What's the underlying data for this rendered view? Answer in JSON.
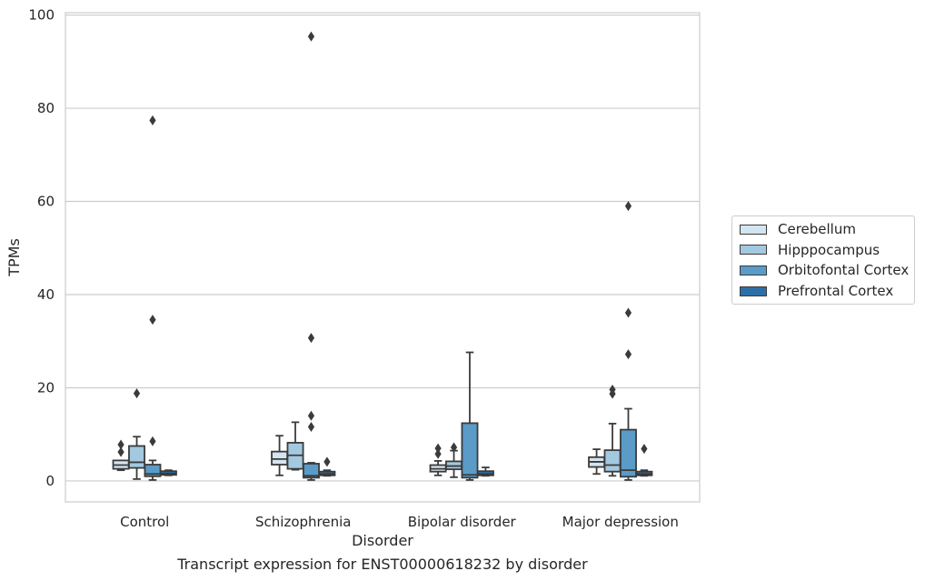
{
  "chart_data": {
    "type": "box",
    "title": "Transcript expression for ENST00000618232 by disorder",
    "xlabel": "Disorder",
    "ylabel": "TPMs",
    "ylim": [
      -4.5,
      100.5
    ],
    "yticks": [
      "0",
      "20",
      "40",
      "60",
      "80",
      "100"
    ],
    "grid": true,
    "legend_position": "right",
    "categories": [
      "Control",
      "Schizophrenia",
      "Bipolar disorder",
      "Major depression"
    ],
    "series": [
      {
        "name": "Cerebellum",
        "color": "#d4e4f1",
        "boxes": [
          {
            "whislo": 2.3,
            "q1": 2.6,
            "med": 3.4,
            "q3": 4.4,
            "whishi": 4.4,
            "fliers": [
              6.2,
              7.8
            ]
          },
          {
            "whislo": 1.2,
            "q1": 3.5,
            "med": 4.7,
            "q3": 6.3,
            "whishi": 9.7,
            "fliers": []
          },
          {
            "whislo": 1.2,
            "q1": 2.0,
            "med": 2.6,
            "q3": 3.4,
            "whishi": 4.3,
            "fliers": [
              5.8,
              7.0
            ]
          },
          {
            "whislo": 1.5,
            "q1": 3.0,
            "med": 4.1,
            "q3": 5.1,
            "whishi": 6.8,
            "fliers": []
          }
        ]
      },
      {
        "name": "Hipppocampus",
        "color": "#a3c9e0",
        "boxes": [
          {
            "whislo": 0.4,
            "q1": 2.8,
            "med": 4.0,
            "q3": 7.5,
            "whishi": 9.5,
            "fliers": [
              18.8
            ]
          },
          {
            "whislo": 2.4,
            "q1": 2.6,
            "med": 5.5,
            "q3": 8.2,
            "whishi": 12.6,
            "fliers": []
          },
          {
            "whislo": 0.8,
            "q1": 2.5,
            "med": 3.2,
            "q3": 4.2,
            "whishi": 6.5,
            "fliers": [
              7.2
            ]
          },
          {
            "whislo": 1.1,
            "q1": 2.0,
            "med": 3.4,
            "q3": 6.6,
            "whishi": 12.3,
            "fliers": [
              18.7,
              19.6
            ]
          }
        ]
      },
      {
        "name": "Orbitofontal Cortex",
        "color": "#5a9bc8",
        "boxes": [
          {
            "whislo": 0.2,
            "q1": 1.0,
            "med": 1.5,
            "q3": 3.5,
            "whishi": 4.4,
            "fliers": [
              8.5,
              34.6,
              77.4
            ]
          },
          {
            "whislo": 0.2,
            "q1": 0.7,
            "med": 1.1,
            "q3": 3.7,
            "whishi": 3.9,
            "fliers": [
              11.6,
              14.0,
              30.7,
              95.4
            ]
          },
          {
            "whislo": 0.2,
            "q1": 0.7,
            "med": 1.3,
            "q3": 12.4,
            "whishi": 27.6,
            "fliers": []
          },
          {
            "whislo": 0.2,
            "q1": 0.9,
            "med": 2.3,
            "q3": 11.0,
            "whishi": 15.5,
            "fliers": [
              27.2,
              36.1,
              59.0
            ]
          }
        ]
      },
      {
        "name": "Prefrontal Cortex",
        "color": "#2e6ea6",
        "boxes": [
          {
            "whislo": 1.2,
            "q1": 1.3,
            "med": 1.6,
            "q3": 2.1,
            "whishi": 2.3,
            "fliers": []
          },
          {
            "whislo": 1.1,
            "q1": 1.2,
            "med": 1.5,
            "q3": 2.0,
            "whishi": 2.3,
            "fliers": [
              4.1
            ]
          },
          {
            "whislo": 1.1,
            "q1": 1.2,
            "med": 1.5,
            "q3": 2.1,
            "whishi": 2.9,
            "fliers": []
          },
          {
            "whislo": 1.1,
            "q1": 1.2,
            "med": 1.5,
            "q3": 2.0,
            "whishi": 2.3,
            "fliers": [
              6.9
            ]
          }
        ]
      }
    ]
  }
}
